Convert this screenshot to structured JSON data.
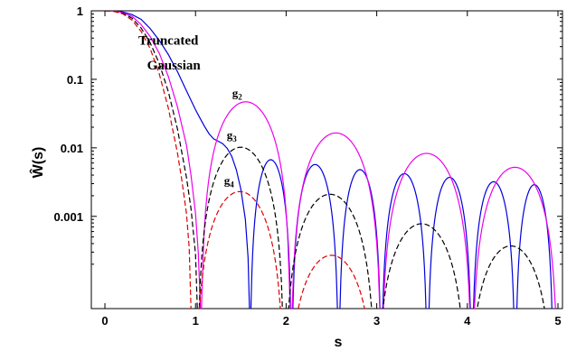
{
  "chart_data": {
    "type": "line",
    "xlabel": "s",
    "ylabel": "Ŵ(s)",
    "xlim": [
      -0.15,
      5.05
    ],
    "ylim": [
      4.5e-05,
      1.0
    ],
    "yscale": "log",
    "x_ticks": [
      0,
      1,
      2,
      3,
      4,
      5
    ],
    "x_tick_labels": [
      "0",
      "1",
      "2",
      "3",
      "4",
      "5"
    ],
    "y_ticks": [
      1,
      0.1,
      0.01,
      0.001
    ],
    "y_tick_labels": [
      "1",
      "0.1",
      "0.01",
      "0.001"
    ],
    "grid": false,
    "legend": null,
    "annotations": [
      {
        "text": "Truncated",
        "x": 0.7,
        "y": 0.32,
        "size": 15
      },
      {
        "text": "Gaussian",
        "x": 0.76,
        "y": 0.14,
        "size": 15
      },
      {
        "text": "g",
        "sub": "2",
        "x": 1.46,
        "y": 0.055,
        "size": 13
      },
      {
        "text": "g",
        "sub": "3",
        "x": 1.4,
        "y": 0.0135,
        "size": 13
      },
      {
        "text": "g",
        "sub": "4",
        "x": 1.37,
        "y": 0.0029,
        "size": 13
      }
    ],
    "series": [
      {
        "color": "#0000dd",
        "dash": "solid",
        "points": [
          [
            0,
            1
          ],
          [
            0.1,
            0.995
          ],
          [
            0.2,
            0.96
          ],
          [
            0.3,
            0.88
          ],
          [
            0.4,
            0.75
          ],
          [
            0.5,
            0.55
          ],
          [
            0.6,
            0.37
          ],
          [
            0.7,
            0.23
          ],
          [
            0.8,
            0.13
          ],
          [
            0.9,
            0.068
          ],
          [
            1.0,
            0.036
          ],
          [
            1.05,
            0.027
          ],
          [
            1.1,
            0.0205
          ],
          [
            1.15,
            0.016
          ],
          [
            1.2,
            0.0135
          ],
          [
            1.25,
            0.0125
          ],
          [
            1.3,
            0.0115
          ],
          [
            1.35,
            0.0098
          ],
          [
            1.4,
            0.0075
          ],
          [
            1.45,
            0.0048
          ],
          [
            1.5,
            0.0025
          ],
          [
            1.55,
            0.0009
          ],
          [
            1.58,
            0.00025
          ],
          [
            1.595,
            4.5e-05
          ]
        ],
        "arches": [
          [
            1.6,
            2.06,
            0.0067
          ],
          [
            2.06,
            2.58,
            0.0057
          ],
          [
            2.58,
            3.05,
            0.0048
          ],
          [
            3.05,
            3.56,
            0.0042
          ],
          [
            3.56,
            4.05,
            0.0037
          ],
          [
            4.05,
            4.53,
            0.0032
          ],
          [
            4.53,
            4.95,
            0.0029
          ]
        ]
      },
      {
        "color": "#ee00ee",
        "dash": "solid",
        "points": [
          [
            0,
            1
          ],
          [
            0.1,
            0.99
          ],
          [
            0.2,
            0.94
          ],
          [
            0.3,
            0.83
          ],
          [
            0.4,
            0.63
          ],
          [
            0.5,
            0.42
          ],
          [
            0.6,
            0.24
          ],
          [
            0.7,
            0.11
          ],
          [
            0.8,
            0.04
          ],
          [
            0.9,
            0.011
          ],
          [
            0.95,
            0.004
          ],
          [
            1.0,
            0.0011
          ],
          [
            1.03,
            0.0003
          ],
          [
            1.055,
            4.5e-05
          ]
        ],
        "arches": [
          [
            1.06,
            2.05,
            0.047
          ],
          [
            2.05,
            3.05,
            0.0165
          ],
          [
            3.05,
            4.05,
            0.0083
          ],
          [
            4.05,
            5.0,
            0.0052
          ]
        ]
      },
      {
        "color": "#000000",
        "dash": "6,3",
        "points": [
          [
            0,
            1
          ],
          [
            0.1,
            0.985
          ],
          [
            0.2,
            0.92
          ],
          [
            0.3,
            0.78
          ],
          [
            0.4,
            0.56
          ],
          [
            0.5,
            0.34
          ],
          [
            0.6,
            0.17
          ],
          [
            0.7,
            0.066
          ],
          [
            0.8,
            0.019
          ],
          [
            0.9,
            0.0037
          ],
          [
            0.95,
            0.0013
          ],
          [
            1.0,
            0.00028
          ],
          [
            1.02,
            4.5e-05
          ]
        ],
        "arches": [
          [
            1.02,
            1.98,
            0.0102
          ],
          [
            1.98,
            2.99,
            0.0021
          ],
          [
            2.99,
            4.0,
            0.00078
          ],
          [
            4.0,
            4.96,
            0.00037
          ]
        ]
      },
      {
        "color": "#dd0000",
        "dash": "6,3",
        "points": [
          [
            0,
            1
          ],
          [
            0.1,
            0.98
          ],
          [
            0.2,
            0.9
          ],
          [
            0.3,
            0.73
          ],
          [
            0.4,
            0.5
          ],
          [
            0.5,
            0.28
          ],
          [
            0.6,
            0.12
          ],
          [
            0.7,
            0.038
          ],
          [
            0.8,
            0.0085
          ],
          [
            0.85,
            0.0033
          ],
          [
            0.9,
            0.0011
          ],
          [
            0.93,
            0.00035
          ],
          [
            0.95,
            4.5e-05
          ]
        ],
        "arches": [
          [
            1.0,
            1.98,
            0.0023
          ],
          [
            2.0,
            3.0,
            0.00027
          ]
        ]
      }
    ]
  }
}
